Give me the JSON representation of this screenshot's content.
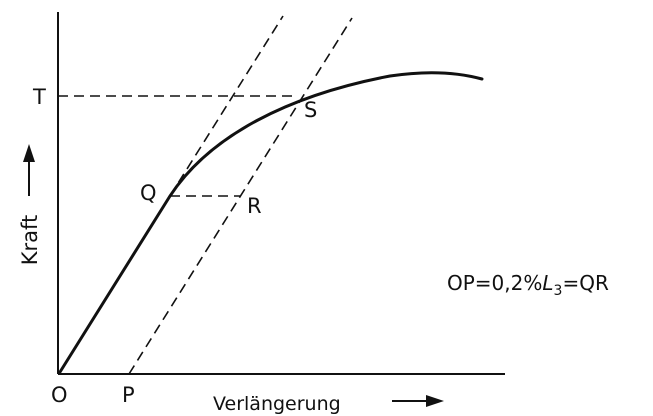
{
  "labels": {
    "origin": "O",
    "p": "P",
    "q": "Q",
    "r": "R",
    "s": "S",
    "t": "T"
  },
  "axes": {
    "y_label": "Kraft",
    "x_label": "Verlängerung"
  },
  "formula": {
    "prefix": "OP=0,2%",
    "variable": "L",
    "subscript": "3",
    "suffix": "=QR"
  }
}
